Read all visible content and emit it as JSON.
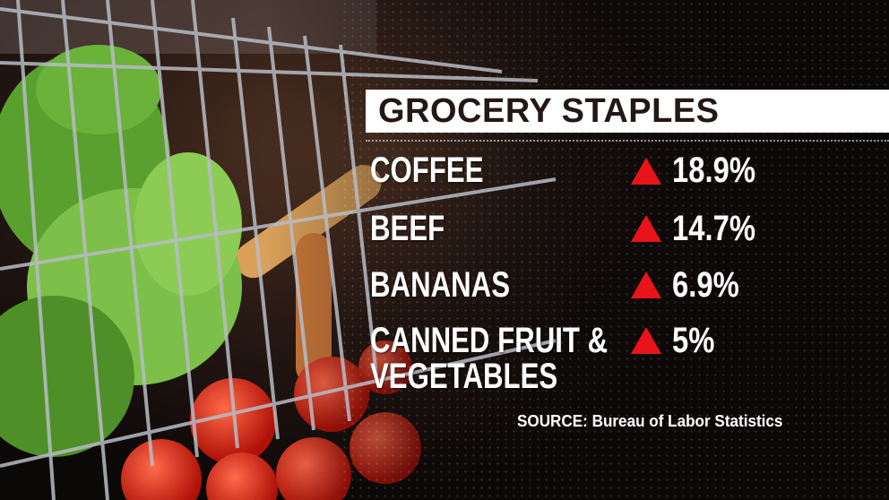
{
  "title": "GROCERY STAPLES",
  "items": [
    {
      "label": "COFFEE",
      "change": "18.9%",
      "direction": "up"
    },
    {
      "label": "BEEF",
      "change": "14.7%",
      "direction": "up"
    },
    {
      "label": "BANANAS",
      "change": "6.9%",
      "direction": "up"
    },
    {
      "label_line1": "CANNED FRUIT &",
      "label_line2": "VEGETABLES",
      "change": "5%",
      "direction": "up"
    }
  ],
  "source": "SOURCE: Bureau of Labor Statistics",
  "colors": {
    "up_arrow": "#e8141a",
    "title_bg": "#ffffff",
    "title_text": "#231815"
  },
  "icons": {
    "up": "triangle-up-icon"
  }
}
